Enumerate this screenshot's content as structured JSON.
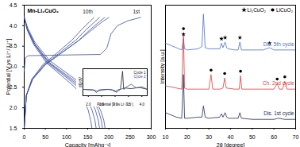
{
  "chart_data": [
    {
      "type": "line",
      "title": "Mn-Li₂CuO₂",
      "x_label": "Capacity [mAhg⁻¹]",
      "y_label": "Potential [V vs Li⁺/ Li⁺]",
      "xlim": [
        0,
        300
      ],
      "xticks": [
        0,
        50,
        100,
        150,
        200,
        250,
        300
      ],
      "ylim": [
        1.5,
        4.5
      ],
      "yticks": [
        1.5,
        {
          "value": 2,
          "label": "2.0"
        },
        2.5,
        {
          "value": 3,
          "label": "3.0"
        },
        3.5,
        {
          "value": 4,
          "label": "4.0"
        },
        4.5
      ],
      "grid": false,
      "annotations": [
        {
          "text": "10th",
          "x": 150,
          "y": 4.33
        },
        {
          "text": "1st",
          "x": 265,
          "y": 4.33
        }
      ],
      "series": [
        {
          "color": "#3c4fa0",
          "x": [
            0,
            3,
            10,
            60,
            120,
            180,
            195,
            205,
            220,
            245,
            275
          ],
          "values": [
            2.9,
            3.22,
            3.27,
            3.28,
            3.29,
            3.3,
            3.45,
            3.8,
            4.0,
            4.12,
            4.2
          ]
        },
        {
          "color": "#3c4fa0",
          "x": [
            0,
            8,
            25,
            60,
            100,
            140,
            165,
            180,
            188,
            191
          ],
          "values": [
            4.2,
            3.95,
            3.6,
            3.15,
            2.85,
            2.55,
            2.25,
            1.95,
            1.7,
            1.5
          ]
        },
        {
          "color": "#3c4fa0",
          "x": [
            0,
            5,
            20,
            50,
            90,
            130,
            160,
            185,
            200
          ],
          "values": [
            1.5,
            2.3,
            2.7,
            3.05,
            3.35,
            3.65,
            3.9,
            4.1,
            4.2
          ]
        },
        {
          "color": "#3c4fa0",
          "x": [
            0,
            8,
            25,
            60,
            100,
            140,
            160,
            175,
            182,
            185
          ],
          "values": [
            4.2,
            3.9,
            3.55,
            3.1,
            2.8,
            2.5,
            2.25,
            1.95,
            1.7,
            1.5
          ]
        },
        {
          "color": "#3c4fa0",
          "x": [
            0,
            5,
            20,
            50,
            90,
            130,
            155,
            178,
            190
          ],
          "values": [
            1.5,
            2.3,
            2.7,
            3.05,
            3.35,
            3.65,
            3.9,
            4.1,
            4.2
          ]
        },
        {
          "color": "#3c4fa0",
          "x": [
            0,
            8,
            25,
            58,
            96,
            134,
            153,
            168,
            175,
            178
          ],
          "values": [
            4.2,
            3.9,
            3.55,
            3.1,
            2.8,
            2.5,
            2.25,
            1.95,
            1.7,
            1.5
          ]
        },
        {
          "color": "#3c4fa0",
          "x": [
            0,
            5,
            19,
            47,
            85,
            122,
            146,
            167,
            178
          ],
          "values": [
            1.5,
            2.3,
            2.7,
            3.05,
            3.35,
            3.65,
            3.9,
            4.1,
            4.2
          ]
        },
        {
          "color": "#3c4fa0",
          "x": [
            0,
            8,
            24,
            55,
            92,
            128,
            146,
            160,
            167,
            170
          ],
          "values": [
            4.2,
            3.9,
            3.55,
            3.1,
            2.8,
            2.5,
            2.25,
            1.95,
            1.7,
            1.5
          ]
        },
        {
          "color": "#3c4fa0",
          "x": [
            0,
            5,
            18,
            44,
            79,
            113,
            135,
            155,
            165
          ],
          "values": [
            1.5,
            2.3,
            2.7,
            3.05,
            3.35,
            3.65,
            3.9,
            4.1,
            4.2
          ]
        },
        {
          "color": "#3c4fa0",
          "x": [
            0,
            7,
            22,
            52,
            86,
            120,
            138,
            151,
            157,
            160
          ],
          "values": [
            4.2,
            3.9,
            3.55,
            3.1,
            2.8,
            2.5,
            2.25,
            1.95,
            1.7,
            1.5
          ]
        }
      ]
    },
    {
      "type": "line",
      "x_label": "Potential [V vs Li⁺/ Li⁺]",
      "y_label": "dQ/dV",
      "xlim": [
        1.8,
        4.2
      ],
      "xticks": [
        {
          "value": 2,
          "label": "2.0"
        },
        2.5,
        {
          "value": 3,
          "label": "3.0"
        },
        3.5,
        {
          "value": 4,
          "label": "4.0"
        }
      ],
      "ylim": [
        -1,
        3.2
      ],
      "tick_labels": "x",
      "legend": "top-right",
      "series": [
        {
          "name": "Cycle 1",
          "color": "#222222",
          "x": [
            1.8,
            2.2,
            2.3,
            2.4,
            2.7,
            2.9,
            3.0,
            3.1,
            3.2,
            3.28,
            3.32,
            3.4,
            3.6,
            3.9,
            4.2
          ],
          "values": [
            0,
            -0.1,
            -0.5,
            -0.1,
            0,
            -0.1,
            -0.4,
            -0.1,
            0,
            2.8,
            0,
            0.2,
            0.1,
            0.3,
            0
          ]
        },
        {
          "name": "Cycle 2",
          "color": "#3c4fa0",
          "x": [
            1.8,
            2.2,
            2.35,
            2.5,
            2.8,
            3.0,
            3.05,
            3.2,
            3.4,
            3.6,
            3.8,
            4.0,
            4.2
          ],
          "values": [
            0,
            -0.1,
            -0.3,
            -0.1,
            0,
            -0.2,
            -0.5,
            0,
            0.3,
            0.8,
            0.2,
            0.4,
            0
          ]
        }
      ]
    },
    {
      "type": "line",
      "x_label": "2θ [degree]",
      "y_label": "Intensity [a.u.]",
      "xlim": [
        10,
        70
      ],
      "xticks": [
        10,
        20,
        30,
        40,
        50,
        60,
        70
      ],
      "ylim": [
        0,
        110
      ],
      "tick_labels": "x",
      "legend": "top-right",
      "series": [
        {
          "name": "Dis. 5th cycle",
          "color": "#4a6fd1",
          "x": [
            10,
            15,
            17.5,
            18.3,
            18.8,
            20,
            25,
            26.8,
            27.5,
            28.3,
            30,
            35,
            35.8,
            36.5,
            37.5,
            38.2,
            39,
            42,
            43.5,
            44.3,
            45,
            50,
            55,
            58,
            60,
            65,
            70
          ],
          "values": [
            76,
            72,
            70,
            80,
            71,
            70,
            71,
            73,
            102,
            72,
            71,
            71,
            76,
            72,
            77,
            72,
            71,
            70,
            70,
            77,
            70,
            70,
            70,
            72,
            70,
            70,
            70
          ]
        },
        {
          "name": "Ch. 2nd cycle",
          "color": "#e03c3c",
          "x": [
            10,
            15,
            17.5,
            18.3,
            18.8,
            20,
            25,
            30,
            31,
            31.8,
            35,
            36.5,
            37.3,
            38,
            42,
            44,
            44.6,
            45.2,
            50,
            55,
            60,
            61.5,
            62.5,
            64,
            65,
            66,
            70
          ],
          "values": [
            38,
            36,
            35,
            85,
            36,
            35,
            35,
            35,
            48,
            35,
            35,
            36,
            45,
            36,
            35,
            35,
            47,
            35,
            35,
            35,
            35,
            40,
            35,
            35,
            42,
            35,
            35
          ]
        },
        {
          "name": "Dis. 1st cycle",
          "color": "#1e2a5a",
          "x": [
            10,
            15,
            17.5,
            18.3,
            18.8,
            20,
            25,
            26.8,
            27.5,
            28.3,
            30,
            35,
            35.8,
            36.5,
            37.5,
            38.2,
            39,
            42,
            43.5,
            44.3,
            45,
            50,
            55,
            60,
            62,
            65,
            70
          ],
          "values": [
            14,
            10,
            9,
            48,
            9,
            9,
            10,
            10,
            20,
            10,
            9,
            10,
            13,
            10,
            14,
            10,
            9,
            9,
            9,
            14,
            9,
            8,
            8,
            8,
            9,
            8,
            8
          ]
        },
        {
          "name": "Li₂CuO₂",
          "type": "scatter",
          "marker": "star",
          "color": "#000000",
          "x": [
            18.3,
            35.8,
            37.5,
            44.3,
            58
          ],
          "values": [
            84,
            80,
            81,
            81,
            76
          ]
        },
        {
          "name": "LiCuO₂",
          "type": "scatter",
          "marker": "circle",
          "color": "#000000",
          "x": [
            18.3,
            31,
            37.3,
            44.6,
            61.5,
            65
          ],
          "values": [
            89,
            52,
            49,
            51,
            44,
            46
          ]
        }
      ]
    }
  ]
}
